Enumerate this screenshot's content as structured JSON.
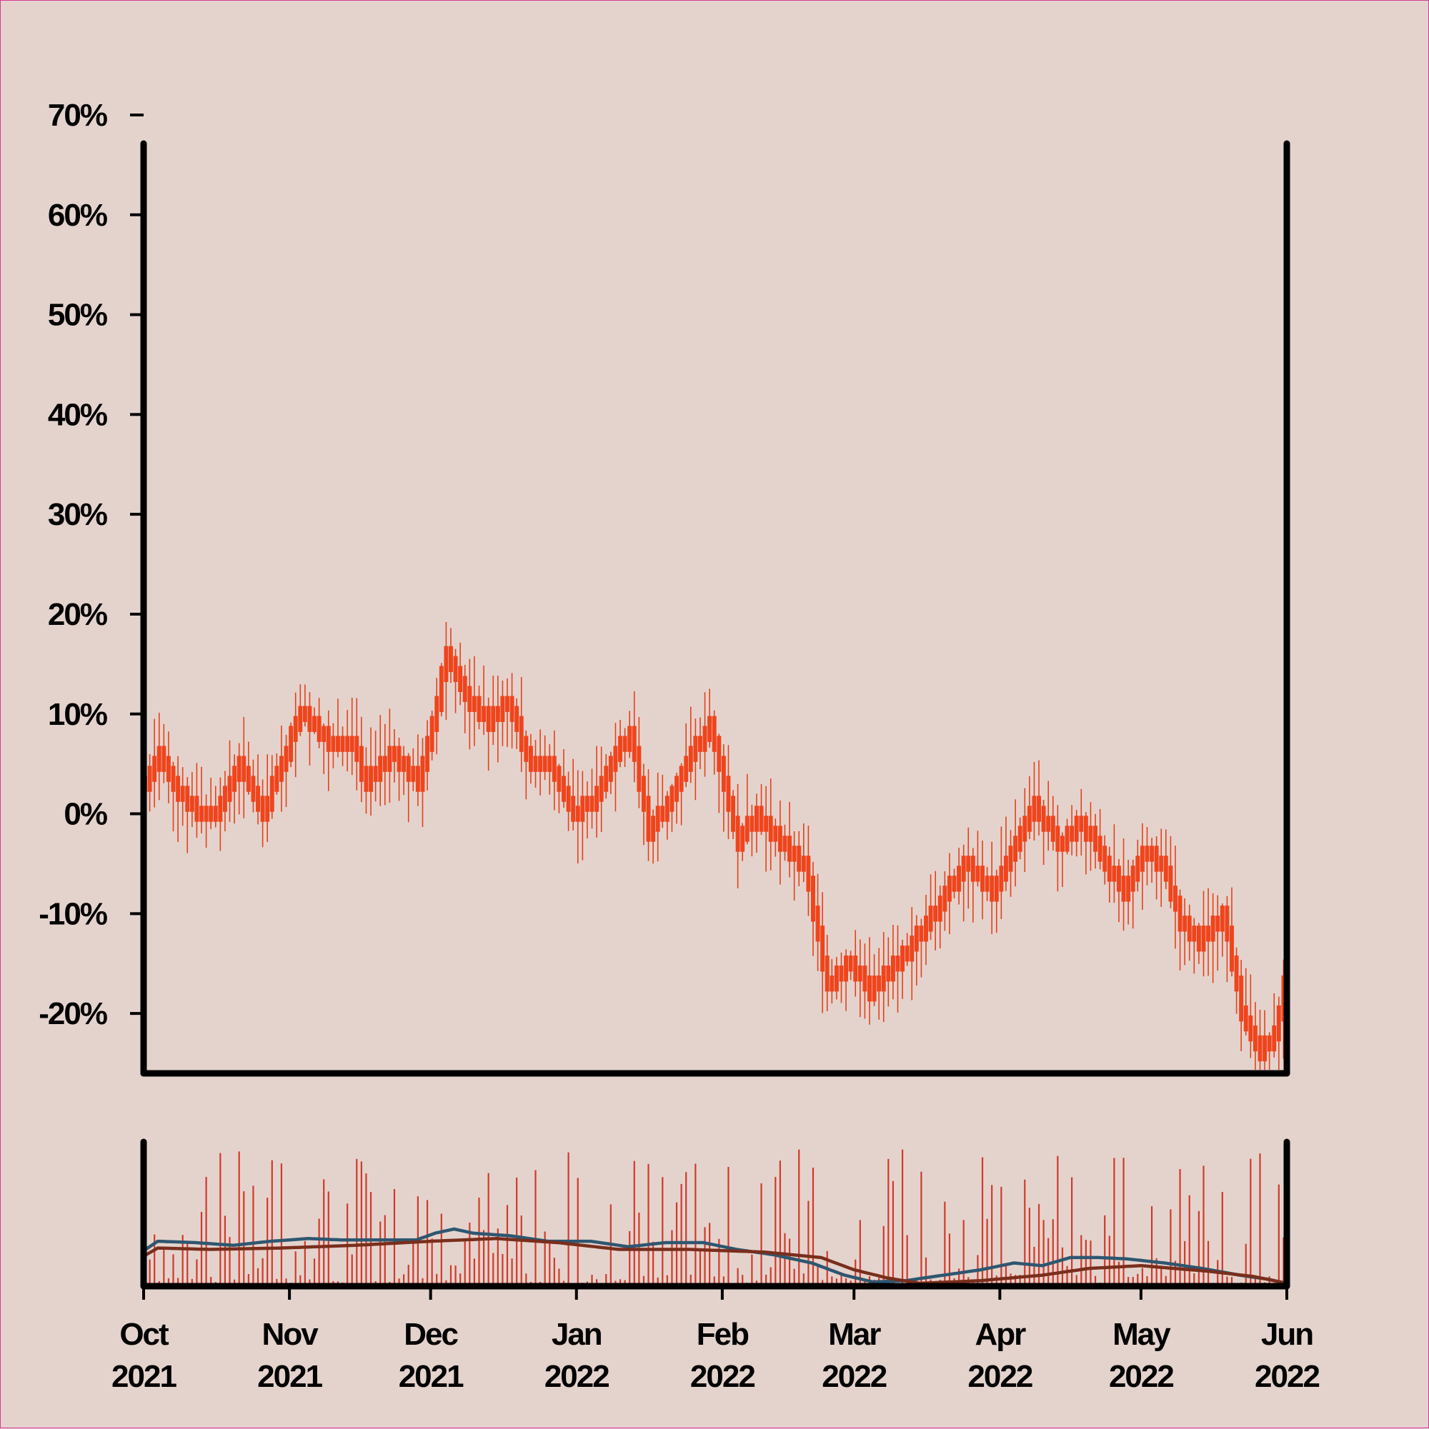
{
  "chart_data": [
    {
      "type": "candlestick",
      "title": "",
      "xlabel": "",
      "ylabel": "",
      "x_range": [
        "2021-10-01",
        "2022-06-01"
      ],
      "ylim": [
        -26,
        70
      ],
      "y_ticks": [
        70,
        60,
        50,
        40,
        30,
        20,
        10,
        0,
        -10,
        -20
      ],
      "y_tick_labels": [
        "70%",
        "60%",
        "50%",
        "40%",
        "30%",
        "20%",
        "10%",
        "0%",
        "-10%",
        "-20%"
      ],
      "x_tick_dates": [
        "2021-10-01",
        "2021-11-01",
        "2021-12-01",
        "2022-01-01",
        "2022-02-01",
        "2022-03-01",
        "2022-04-01",
        "2022-05-01",
        "2022-06-01"
      ],
      "x_tick_labels": [
        [
          "Oct",
          "2021"
        ],
        [
          "Nov",
          "2021"
        ],
        [
          "Dec",
          "2021"
        ],
        [
          "Jan",
          "2022"
        ],
        [
          "Feb",
          "2022"
        ],
        [
          "Mar",
          "2022"
        ],
        [
          "Apr",
          "2022"
        ],
        [
          "May",
          "2022"
        ],
        [
          "Jun",
          "2022"
        ]
      ],
      "close_path": {
        "dates": [
          "2021-10-01",
          "2021-10-04",
          "2021-10-08",
          "2021-10-12",
          "2021-10-16",
          "2021-10-21",
          "2021-10-26",
          "2021-10-30",
          "2021-11-03",
          "2021-11-10",
          "2021-11-14",
          "2021-11-17",
          "2021-11-22",
          "2021-11-28",
          "2021-12-01",
          "2021-12-04",
          "2021-12-08",
          "2021-12-13",
          "2021-12-17",
          "2021-12-22",
          "2021-12-26",
          "2021-12-31",
          "2022-01-04",
          "2022-01-09",
          "2022-01-12",
          "2022-01-16",
          "2022-01-20",
          "2022-01-24",
          "2022-01-29",
          "2022-02-04",
          "2022-02-08",
          "2022-02-13",
          "2022-02-18",
          "2022-02-23",
          "2022-02-28",
          "2022-03-04",
          "2022-03-08",
          "2022-03-13",
          "2022-03-19",
          "2022-03-24",
          "2022-03-30",
          "2022-04-04",
          "2022-04-08",
          "2022-04-13",
          "2022-04-18",
          "2022-04-22",
          "2022-04-27",
          "2022-05-01",
          "2022-05-05",
          "2022-05-09",
          "2022-05-13",
          "2022-05-18",
          "2022-05-22",
          "2022-05-26",
          "2022-05-29",
          "2022-06-01"
        ],
        "values": [
          3,
          6,
          2,
          0,
          0,
          5,
          0,
          5,
          10,
          7,
          7,
          3,
          6,
          3,
          9,
          16,
          12,
          9,
          11,
          5,
          5,
          0,
          1,
          6,
          8,
          -2,
          1,
          5,
          9,
          -3,
          0,
          -3,
          -5,
          -17,
          -15,
          -18,
          -16,
          -13,
          -9,
          -5,
          -8,
          -3,
          1,
          -3,
          -1,
          -4,
          -8,
          -4,
          -5,
          -11,
          -13,
          -10,
          -20,
          -24,
          -22,
          -15
        ]
      },
      "candle_color": "#f0441c",
      "wick_color": "#e2421c"
    },
    {
      "type": "bar+line",
      "title": "",
      "x_range": [
        "2021-10-01",
        "2022-06-01"
      ],
      "bar_color": "#d03a2a",
      "lines": [
        {
          "color": "#2e5670",
          "dates": [
            "2021-10-01",
            "2021-10-04",
            "2021-10-12",
            "2021-10-20",
            "2021-10-28",
            "2021-11-05",
            "2021-11-12",
            "2021-11-20",
            "2021-11-28",
            "2021-12-02",
            "2021-12-06",
            "2021-12-10",
            "2021-12-18",
            "2021-12-26",
            "2022-01-04",
            "2022-01-12",
            "2022-01-20",
            "2022-01-28",
            "2022-02-04",
            "2022-02-12",
            "2022-02-20",
            "2022-02-27",
            "2022-03-05",
            "2022-03-12",
            "2022-03-20",
            "2022-03-28",
            "2022-04-04",
            "2022-04-10",
            "2022-04-16",
            "2022-04-22",
            "2022-04-28",
            "2022-05-06",
            "2022-05-14",
            "2022-05-22",
            "2022-05-28",
            "2022-06-01"
          ],
          "values": [
            24,
            31,
            30,
            28,
            31,
            33,
            32,
            32,
            32,
            37,
            40,
            37,
            35,
            31,
            31,
            27,
            30,
            30,
            25,
            21,
            15,
            6,
            1,
            2,
            6,
            10,
            15,
            13,
            19,
            19,
            18,
            15,
            11,
            6,
            3,
            0
          ]
        },
        {
          "color": "#7a2e1c",
          "dates": [
            "2021-10-01",
            "2021-10-04",
            "2021-10-15",
            "2021-10-30",
            "2021-11-15",
            "2021-12-01",
            "2021-12-15",
            "2021-12-28",
            "2022-01-10",
            "2022-01-25",
            "2022-02-10",
            "2022-02-22",
            "2022-03-01",
            "2022-03-08",
            "2022-03-15",
            "2022-03-28",
            "2022-04-10",
            "2022-04-20",
            "2022-05-01",
            "2022-05-15",
            "2022-05-25",
            "2022-06-01"
          ],
          "values": [
            20,
            26,
            25,
            26,
            28,
            31,
            33,
            30,
            25,
            25,
            23,
            19,
            10,
            4,
            0,
            2,
            6,
            11,
            13,
            9,
            5,
            0
          ]
        }
      ]
    }
  ]
}
